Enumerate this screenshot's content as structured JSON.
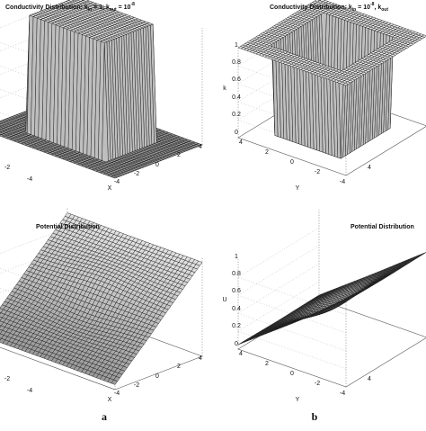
{
  "panels": [
    {
      "title": [
        "Conductivity Distribution: k",
        "in",
        " = 1, k",
        "out",
        " = 10",
        "-8"
      ],
      "left_ticks": [
        "-2",
        "-4"
      ],
      "bottom_ticks": [
        "-4",
        "-2",
        "0",
        "2",
        "4"
      ],
      "bottom_label": "X"
    },
    {
      "title": [
        "Conductivity Distribution: k",
        "in",
        " = 10",
        "-8",
        ", k",
        "out"
      ],
      "z_ticks": [
        "1",
        "0.8",
        "0.6",
        "0.4",
        "0.2",
        "0"
      ],
      "z_label": "k",
      "bottom_ticks": [
        "4",
        "2",
        "0",
        "-2",
        "-4"
      ],
      "bottom_label": "Y",
      "right_ticks": [
        "4"
      ]
    },
    {
      "title": [
        "Potential Distribution"
      ],
      "left_ticks": [
        "-2",
        "-4"
      ],
      "bottom_ticks": [
        "-4",
        "-2",
        "0",
        "2",
        "4"
      ],
      "bottom_label": "X"
    },
    {
      "title": [
        "Potential Distribution"
      ],
      "z_ticks": [
        "1",
        "0.8",
        "0.6",
        "0.4",
        "0.2",
        "0"
      ],
      "z_label": "U",
      "bottom_ticks": [
        "4",
        "2",
        "0",
        "-2",
        "-4"
      ],
      "bottom_label": "Y",
      "right_ticks": [
        "4"
      ]
    }
  ],
  "labels": [
    "a",
    "b"
  ]
}
